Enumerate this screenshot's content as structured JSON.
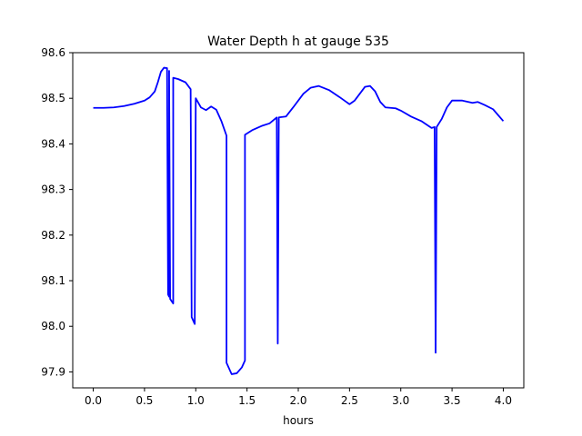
{
  "chart_data": {
    "type": "line",
    "title": "Water Depth h at gauge 535",
    "xlabel": "hours",
    "ylabel": "",
    "xlim": [
      -0.2,
      4.2
    ],
    "ylim": [
      97.865,
      98.6
    ],
    "x_ticks": [
      0.0,
      0.5,
      1.0,
      1.5,
      2.0,
      2.5,
      3.0,
      3.5,
      4.0
    ],
    "x_tick_labels": [
      "0.0",
      "0.5",
      "1.0",
      "1.5",
      "2.0",
      "2.5",
      "3.0",
      "3.5",
      "4.0"
    ],
    "y_ticks": [
      97.9,
      98.0,
      98.1,
      98.2,
      98.3,
      98.4,
      98.5,
      98.6
    ],
    "y_tick_labels": [
      "97.9",
      "98.0",
      "98.1",
      "98.2",
      "98.3",
      "98.4",
      "98.5",
      "98.6"
    ],
    "grid": false,
    "series": [
      {
        "color": "#0000ff",
        "points": [
          [
            0.0,
            98.479
          ],
          [
            0.1,
            98.479
          ],
          [
            0.2,
            98.48
          ],
          [
            0.3,
            98.483
          ],
          [
            0.4,
            98.488
          ],
          [
            0.5,
            98.495
          ],
          [
            0.55,
            98.502
          ],
          [
            0.6,
            98.515
          ],
          [
            0.63,
            98.535
          ],
          [
            0.66,
            98.558
          ],
          [
            0.69,
            98.567
          ],
          [
            0.72,
            98.566
          ],
          [
            0.73,
            98.07
          ],
          [
            0.74,
            98.065
          ],
          [
            0.74,
            98.56
          ],
          [
            0.75,
            98.06
          ],
          [
            0.78,
            98.05
          ],
          [
            0.78,
            98.545
          ],
          [
            0.83,
            98.542
          ],
          [
            0.9,
            98.535
          ],
          [
            0.95,
            98.52
          ],
          [
            0.96,
            98.02
          ],
          [
            0.99,
            98.005
          ],
          [
            1.0,
            98.5
          ],
          [
            1.05,
            98.48
          ],
          [
            1.1,
            98.474
          ],
          [
            1.15,
            98.482
          ],
          [
            1.2,
            98.475
          ],
          [
            1.25,
            98.45
          ],
          [
            1.3,
            98.418
          ],
          [
            1.3,
            97.92
          ],
          [
            1.35,
            97.895
          ],
          [
            1.4,
            97.897
          ],
          [
            1.45,
            97.91
          ],
          [
            1.48,
            97.925
          ],
          [
            1.48,
            98.42
          ],
          [
            1.55,
            98.43
          ],
          [
            1.65,
            98.44
          ],
          [
            1.72,
            98.445
          ],
          [
            1.79,
            98.458
          ],
          [
            1.8,
            97.962
          ],
          [
            1.81,
            98.458
          ],
          [
            1.88,
            98.46
          ],
          [
            1.95,
            98.48
          ],
          [
            2.05,
            98.51
          ],
          [
            2.12,
            98.523
          ],
          [
            2.2,
            98.527
          ],
          [
            2.3,
            98.518
          ],
          [
            2.4,
            98.503
          ],
          [
            2.5,
            98.487
          ],
          [
            2.55,
            98.495
          ],
          [
            2.6,
            98.51
          ],
          [
            2.65,
            98.525
          ],
          [
            2.7,
            98.527
          ],
          [
            2.75,
            98.515
          ],
          [
            2.8,
            98.492
          ],
          [
            2.85,
            98.48
          ],
          [
            2.95,
            98.478
          ],
          [
            3.0,
            98.473
          ],
          [
            3.1,
            98.46
          ],
          [
            3.2,
            98.45
          ],
          [
            3.3,
            98.435
          ],
          [
            3.33,
            98.437
          ],
          [
            3.34,
            97.942
          ],
          [
            3.35,
            98.437
          ],
          [
            3.4,
            98.455
          ],
          [
            3.45,
            98.48
          ],
          [
            3.5,
            98.495
          ],
          [
            3.6,
            98.495
          ],
          [
            3.7,
            98.49
          ],
          [
            3.75,
            98.492
          ],
          [
            3.82,
            98.485
          ],
          [
            3.9,
            98.476
          ],
          [
            4.0,
            98.45
          ]
        ]
      }
    ]
  }
}
